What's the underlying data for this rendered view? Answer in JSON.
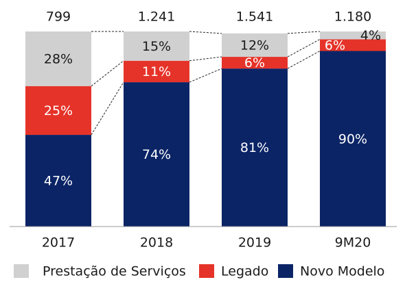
{
  "chart_data": {
    "type": "stacked_bar_100",
    "categories": [
      "2017",
      "2018",
      "2019",
      "9M20"
    ],
    "totals": [
      799,
      1241,
      1541,
      1180
    ],
    "total_labels": [
      "799",
      "1.241",
      "1.541",
      "1.180"
    ],
    "series": [
      {
        "name": "Novo Modelo",
        "color": "#0b2466",
        "values": [
          47,
          74,
          81,
          90
        ],
        "value_labels": [
          "47%",
          "74%",
          "81%",
          "90%"
        ]
      },
      {
        "name": "Legado",
        "color": "#e53329",
        "values": [
          25,
          11,
          6,
          6
        ],
        "value_labels": [
          "25%",
          "11%",
          "6%",
          "6%"
        ]
      },
      {
        "name": "Prestação de Serviços",
        "color": "#d0d0d0",
        "values": [
          28,
          15,
          12,
          4
        ],
        "value_labels": [
          "28%",
          "15%",
          "12%",
          "4%"
        ]
      }
    ],
    "ylim": [
      0,
      100
    ]
  }
}
